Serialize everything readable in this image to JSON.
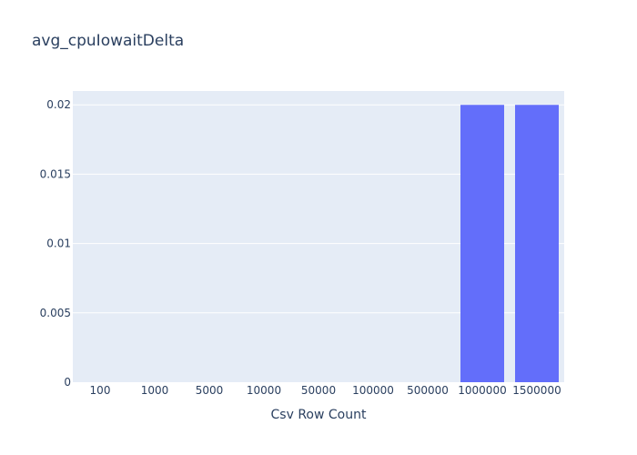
{
  "chart_data": {
    "type": "bar",
    "title": "avg_cpuIowaitDelta",
    "xlabel": "Csv Row Count",
    "ylabel": "",
    "categories": [
      "100",
      "1000",
      "5000",
      "10000",
      "50000",
      "100000",
      "500000",
      "1000000",
      "1500000"
    ],
    "values": [
      0,
      0,
      0,
      0,
      0,
      0,
      0,
      0.02,
      0.02
    ],
    "ylim": [
      0,
      0.021
    ],
    "yticks": [
      0,
      0.005,
      0.01,
      0.015,
      0.02
    ],
    "ytick_labels": [
      "0",
      "0.005",
      "0.01",
      "0.015",
      "0.02"
    ],
    "grid": true,
    "colors": {
      "bar": "#636efa",
      "plot_background": "#e5ecf6",
      "grid": "#ffffff",
      "text": "#2a3f5f"
    }
  }
}
